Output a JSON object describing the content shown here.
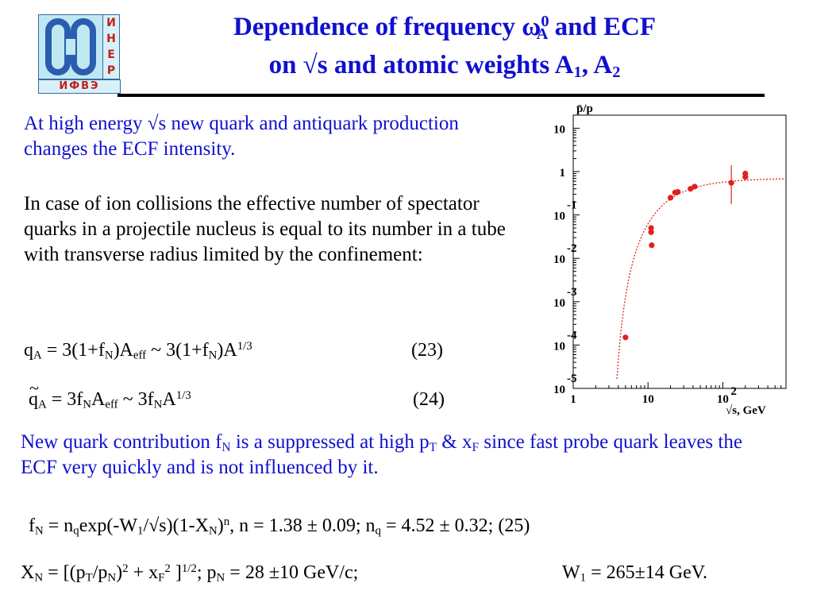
{
  "logo": {
    "side_letters": [
      "И",
      "Н",
      "Е",
      "Р"
    ],
    "bottom_text": "ИФВЭ",
    "primary_color": "#2a5db0",
    "accent_color": "#c02020"
  },
  "title": {
    "line1_pre": "Dependence of frequency ω",
    "line1_sup": "0",
    "line1_sub": "A",
    "line1_post": " and ECF",
    "line2_pre": "on  √s and atomic weights A",
    "line2_sub1": "1",
    "line2_mid": ", A",
    "line2_sub2": "2"
  },
  "paragraphs": {
    "p1": "At high energy √s new quark and antiquark production changes the ECF intensity.",
    "p2": "In case of ion collisions the effective number of spectator quarks in a projectile nucleus is equal to its number in a tube with transverse radius limited by the confinement:",
    "p3_a": "New quark contribution  f",
    "p3_a_sub": "N",
    "p3_b": " is a suppressed at high p",
    "p3_b_sub": "T",
    "p3_c": " & x",
    "p3_c_sub": "F",
    "p3_d": " since fast probe quark leaves the ECF very quickly and is not influenced by it."
  },
  "equations": {
    "eq23": {
      "q": "q",
      "q_sub": "A",
      "t1": " = 3(1+f",
      "s1": "N",
      "t2": ")A",
      "s2": "eff",
      "t3": "  ~  3(1+f",
      "s3": "N",
      "t4": ")A",
      "sup": "1/3",
      "num": "(23)"
    },
    "eq24": {
      "q": "q",
      "q_sub": "A",
      "t1": " = 3f",
      "s1": "N",
      "t2": "A",
      "s2": "eff",
      "t3": "       ~ 3f",
      "s3": "N",
      "t4": "A",
      "sup": "1/3",
      "num": "(24)"
    },
    "eq25": {
      "t1": "f",
      "s1": "N",
      "t2": " = n",
      "s2": "q",
      "t3": "exp(-W",
      "s3": "1",
      "t4": "/√s)(1-X",
      "s4": "N",
      "t5": ")",
      "sup1": "n",
      "t6": ",  n = 1.38 ± 0.09;  n",
      "s5": "q",
      "t7": " = 4.52 ± 0.32; (25)"
    },
    "eq26": {
      "t1": "X",
      "s1": "N",
      "t2": " = [(p",
      "s2": "T",
      "t3": "/p",
      "s3": "N",
      "t4": ")",
      "sup1": "2",
      "t5": " + x",
      "s4": "F",
      "sup2": "2",
      "t6": " ]",
      "sup3": "1/2",
      "t7": ";  p",
      "s5": "N",
      "t8": " = 28 ±10 GeV/c;",
      "t9": "W",
      "s6": "1",
      "t10": " = 265±14 GeV."
    }
  },
  "chart_data": {
    "type": "scatter",
    "title": "",
    "ylabel": "p̄/p",
    "xlabel": "√s, GeV",
    "x_scale": "log",
    "y_scale": "log",
    "xlim": [
      1,
      700
    ],
    "ylim": [
      1e-05,
      20
    ],
    "x_ticks": [
      {
        "label": "1",
        "value": 1
      },
      {
        "label": "10",
        "value": 10
      },
      {
        "label": "10",
        "sup": "2",
        "value": 100
      }
    ],
    "y_ticks": [
      {
        "label": "10",
        "sup": "",
        "value": 10
      },
      {
        "label": "1",
        "sup": "",
        "value": 1
      },
      {
        "label": "10",
        "sup": "-1",
        "value": 0.1
      },
      {
        "label": "10",
        "sup": "-2",
        "value": 0.01
      },
      {
        "label": "10",
        "sup": "-3",
        "value": 0.001
      },
      {
        "label": "10",
        "sup": "-4",
        "value": 0.0001
      },
      {
        "label": "10",
        "sup": "-5",
        "value": 1e-05
      }
    ],
    "points": [
      {
        "x": 5,
        "y": 0.00015
      },
      {
        "x": 11,
        "y": 0.05
      },
      {
        "x": 11,
        "y": 0.04
      },
      {
        "x": 11.2,
        "y": 0.02
      },
      {
        "x": 20,
        "y": 0.25
      },
      {
        "x": 23,
        "y": 0.33
      },
      {
        "x": 25,
        "y": 0.34
      },
      {
        "x": 37,
        "y": 0.4
      },
      {
        "x": 42,
        "y": 0.45
      },
      {
        "x": 130,
        "y": 0.55,
        "err": [
          0.18,
          1.4
        ]
      },
      {
        "x": 200,
        "y": 0.75
      },
      {
        "x": 200,
        "y": 0.9
      }
    ],
    "fit_curve": {
      "style": "dotted",
      "color": "#e02020"
    },
    "marker_color": "#e02020"
  }
}
